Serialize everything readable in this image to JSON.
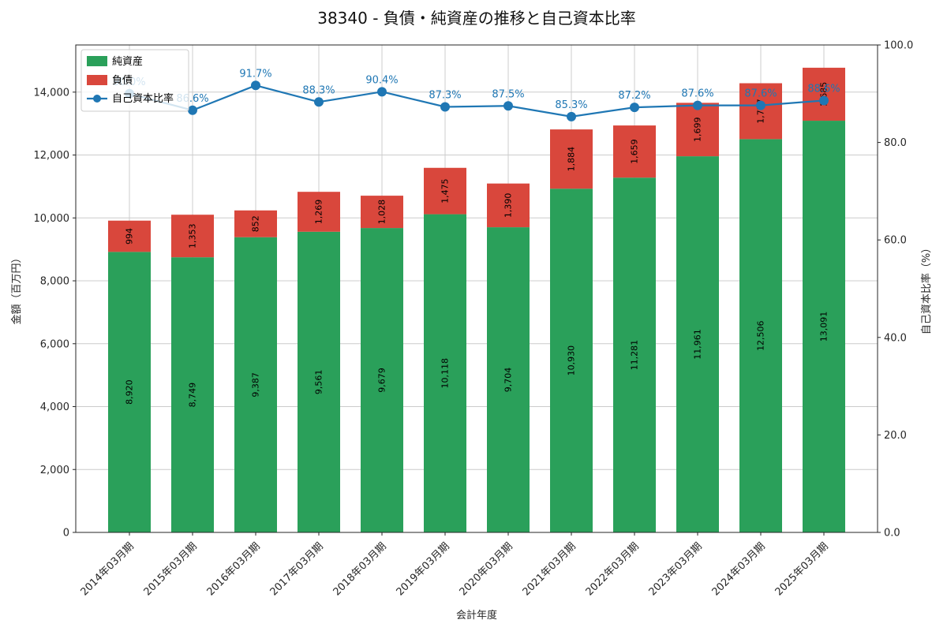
{
  "title": "38340 - 負債・純資産の推移と自己資本比率",
  "chart_data": {
    "type": "bar",
    "stacked": true,
    "title": "38340 - 負債・純資産の推移と自己資本比率",
    "xlabel": "会計年度",
    "ylabel_left": "金額（百万円）",
    "ylabel_right": "自己資本比率（%）",
    "categories": [
      "2014年03月期",
      "2015年03月期",
      "2016年03月期",
      "2017年03月期",
      "2018年03月期",
      "2019年03月期",
      "2020年03月期",
      "2021年03月期",
      "2022年03月期",
      "2023年03月期",
      "2024年03月期",
      "2025年03月期"
    ],
    "series": [
      {
        "name": "純資産",
        "color": "#2aa05a",
        "values": [
          8920,
          8749,
          9387,
          9561,
          9679,
          10118,
          9704,
          10930,
          11281,
          11961,
          12506,
          13091
        ]
      },
      {
        "name": "負債",
        "color": "#d9473c",
        "values": [
          994,
          1353,
          852,
          1269,
          1028,
          1475,
          1390,
          1884,
          1659,
          1699,
          1777,
          1685
        ]
      }
    ],
    "line_series": {
      "name": "自己資本比率",
      "color": "#1f77b4",
      "axis": "right",
      "values": [
        90.0,
        86.6,
        91.7,
        88.3,
        90.4,
        87.3,
        87.5,
        85.3,
        87.2,
        87.6,
        87.6,
        88.6
      ]
    },
    "left_axis": {
      "min": 0,
      "max": 15500,
      "ticks": [
        0,
        2000,
        4000,
        6000,
        8000,
        10000,
        12000,
        14000
      ]
    },
    "right_axis": {
      "min": 0,
      "max": 100,
      "ticks": [
        0,
        20,
        40,
        60,
        80,
        100
      ]
    },
    "legend": [
      "純資産",
      "負債",
      "自己資本比率"
    ],
    "grid": true,
    "colors": {
      "grid": "#cccccc",
      "spine": "#262626",
      "tick_text": "#262626",
      "bar_label": "#000000",
      "title_text": "#111111"
    }
  }
}
